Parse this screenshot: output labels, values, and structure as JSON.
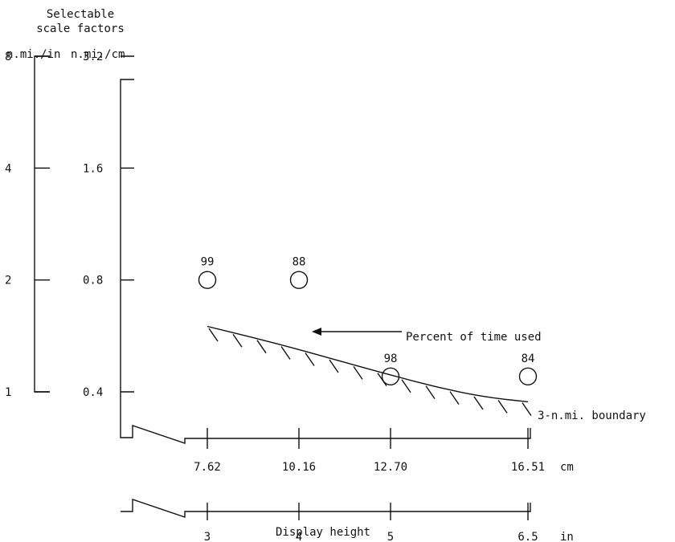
{
  "chart_data": {
    "type": "scatter",
    "header": [
      "Selectable",
      "scale factors"
    ],
    "y_units": {
      "inch": "n.mi./in",
      "cm": "n.mi./cm"
    },
    "y_ticks_in": [
      "8",
      "4",
      "2",
      "1"
    ],
    "y_ticks_cm": [
      "3.2",
      "1.6",
      "0.8",
      "0.4"
    ],
    "y_tick_values": [
      8,
      4,
      2,
      1
    ],
    "x_ticks_cm": [
      "7.62",
      "10.16",
      "12.70",
      "16.51"
    ],
    "x_unit_cm": "cm",
    "x_ticks_in": [
      "3",
      "4",
      "5",
      "6.5"
    ],
    "x_unit_in": "in",
    "x_tick_values": [
      3,
      4,
      5,
      6.5
    ],
    "xlabel": "Display height",
    "points": [
      {
        "x": 3,
        "y": 2,
        "label": "99"
      },
      {
        "x": 4,
        "y": 2,
        "label": "88"
      },
      {
        "x": 5,
        "y": 1.1,
        "label": "98"
      },
      {
        "x": 6.5,
        "y": 1.1,
        "label": "84"
      }
    ],
    "boundary": {
      "label": "3-n.mi. boundary",
      "x": [
        3,
        3.5,
        4,
        4.5,
        5,
        5.5,
        6,
        6.5
      ],
      "y": [
        1.5,
        1.4,
        1.3,
        1.2,
        1.11,
        1.03,
        0.97,
        0.94
      ]
    },
    "annotation": "Percent of time used"
  }
}
